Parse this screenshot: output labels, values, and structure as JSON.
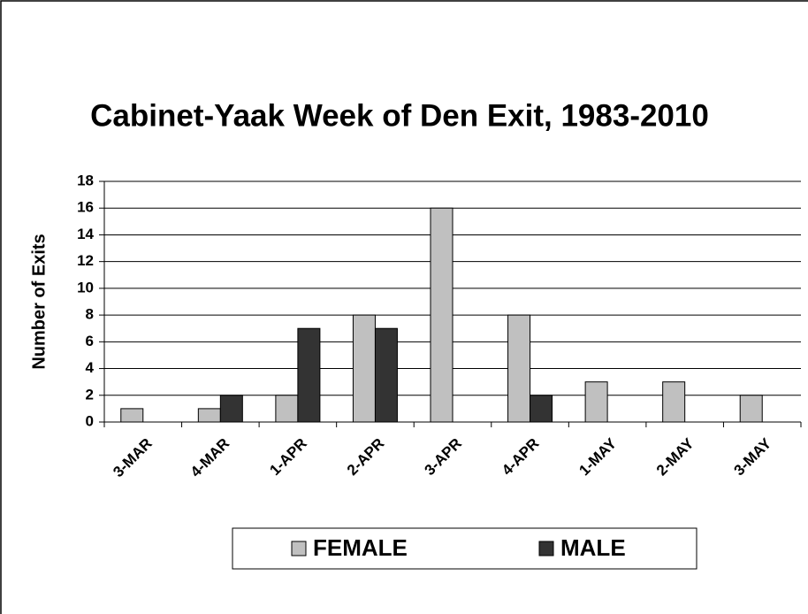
{
  "chart_data": {
    "type": "bar",
    "title": "Cabinet-Yaak Week of Den Exit, 1983-2010",
    "y_label": "Number of Exits",
    "categories": [
      "3-MAR",
      "4-MAR",
      "1-APR",
      "2-APR",
      "3-APR",
      "4-APR",
      "1-MAY",
      "2-MAY",
      "3-MAY"
    ],
    "series": [
      {
        "name": "FEMALE",
        "color": "#c0c0c0",
        "values": [
          1,
          1,
          2,
          8,
          16,
          8,
          3,
          3,
          2
        ]
      },
      {
        "name": "MALE",
        "color": "#333333",
        "values": [
          0,
          2,
          7,
          7,
          0,
          2,
          0,
          0,
          0
        ]
      }
    ],
    "ylim": [
      0,
      18
    ],
    "yticks": [
      0,
      2,
      4,
      6,
      8,
      10,
      12,
      14,
      16,
      18
    ],
    "grid": true,
    "legend": "bottom"
  }
}
